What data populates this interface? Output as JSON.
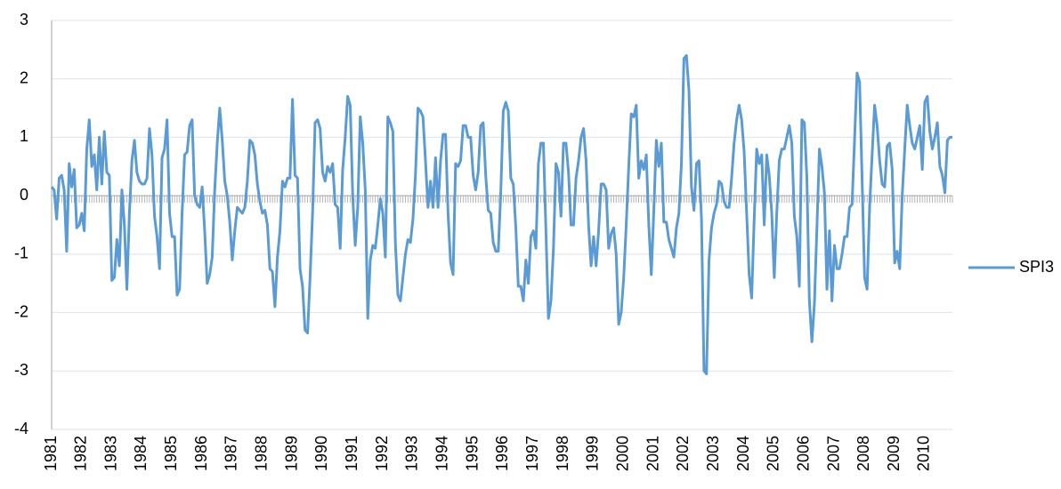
{
  "chart_data": {
    "type": "line",
    "categories": [
      "1981",
      null,
      null,
      null,
      null,
      null,
      null,
      null,
      null,
      null,
      null,
      null,
      "1982",
      null,
      null,
      null,
      null,
      null,
      null,
      null,
      null,
      null,
      null,
      null,
      "1983",
      null,
      null,
      null,
      null,
      null,
      null,
      null,
      null,
      null,
      null,
      null,
      "1984",
      null,
      null,
      null,
      null,
      null,
      null,
      null,
      null,
      null,
      null,
      null,
      "1985",
      null,
      null,
      null,
      null,
      null,
      null,
      null,
      null,
      null,
      null,
      null,
      "1986",
      null,
      null,
      null,
      null,
      null,
      null,
      null,
      null,
      null,
      null,
      null,
      "1987",
      null,
      null,
      null,
      null,
      null,
      null,
      null,
      null,
      null,
      null,
      null,
      "1988",
      null,
      null,
      null,
      null,
      null,
      null,
      null,
      null,
      null,
      null,
      null,
      "1989",
      null,
      null,
      null,
      null,
      null,
      null,
      null,
      null,
      null,
      null,
      null,
      "1990",
      null,
      null,
      null,
      null,
      null,
      null,
      null,
      null,
      null,
      null,
      null,
      "1991",
      null,
      null,
      null,
      null,
      null,
      null,
      null,
      null,
      null,
      null,
      null,
      "1992",
      null,
      null,
      null,
      null,
      null,
      null,
      null,
      null,
      null,
      null,
      null,
      "1993",
      null,
      null,
      null,
      null,
      null,
      null,
      null,
      null,
      null,
      null,
      null,
      "1994",
      null,
      null,
      null,
      null,
      null,
      null,
      null,
      null,
      null,
      null,
      null,
      "1995",
      null,
      null,
      null,
      null,
      null,
      null,
      null,
      null,
      null,
      null,
      null,
      "1996",
      null,
      null,
      null,
      null,
      null,
      null,
      null,
      null,
      null,
      null,
      null,
      "1997",
      null,
      null,
      null,
      null,
      null,
      null,
      null,
      null,
      null,
      null,
      null,
      "1998",
      null,
      null,
      null,
      null,
      null,
      null,
      null,
      null,
      null,
      null,
      null,
      "1999",
      null,
      null,
      null,
      null,
      null,
      null,
      null,
      null,
      null,
      null,
      null,
      "2000",
      null,
      null,
      null,
      null,
      null,
      null,
      null,
      null,
      null,
      null,
      null,
      "2001",
      null,
      null,
      null,
      null,
      null,
      null,
      null,
      null,
      null,
      null,
      null,
      "2002",
      null,
      null,
      null,
      null,
      null,
      null,
      null,
      null,
      null,
      null,
      null,
      "2003",
      null,
      null,
      null,
      null,
      null,
      null,
      null,
      null,
      null,
      null,
      null,
      "2004",
      null,
      null,
      null,
      null,
      null,
      null,
      null,
      null,
      null,
      null,
      null,
      "2005",
      null,
      null,
      null,
      null,
      null,
      null,
      null,
      null,
      null,
      null,
      null,
      "2006",
      null,
      null,
      null,
      null,
      null,
      null,
      null,
      null,
      null,
      null,
      null,
      "2007",
      null,
      null,
      null,
      null,
      null,
      null,
      null,
      null,
      null,
      null,
      null,
      "2008",
      null,
      null,
      null,
      null,
      null,
      null,
      null,
      null,
      null,
      null,
      null,
      "2009",
      null,
      null,
      null,
      null,
      null,
      null,
      null,
      null,
      null,
      null,
      null,
      "2010",
      null,
      null,
      null,
      null,
      null,
      null,
      null,
      null,
      null,
      null,
      null
    ],
    "series": [
      {
        "name": "SPI3",
        "color": "#5b9bd5",
        "values": [
          0.15,
          0.1,
          -0.4,
          0.3,
          0.35,
          0.1,
          -0.95,
          0.55,
          0.15,
          0.45,
          -0.55,
          -0.5,
          -0.3,
          -0.6,
          0.8,
          1.3,
          0.5,
          0.7,
          0.1,
          1.0,
          0.2,
          1.1,
          0.4,
          0.35,
          -1.45,
          -1.4,
          -0.75,
          -1.2,
          0.1,
          -0.5,
          -1.6,
          -0.3,
          0.6,
          0.95,
          0.4,
          0.25,
          0.2,
          0.2,
          0.3,
          1.15,
          0.7,
          -0.35,
          -0.7,
          -1.25,
          0.65,
          0.8,
          1.3,
          -0.3,
          -0.7,
          -0.7,
          -1.7,
          -1.6,
          -0.3,
          0.7,
          0.75,
          1.2,
          1.3,
          0.0,
          -0.15,
          -0.2,
          0.15,
          -0.6,
          -1.5,
          -1.35,
          -1.05,
          0.1,
          0.9,
          1.5,
          0.95,
          0.25,
          0.0,
          -0.45,
          -1.1,
          -0.6,
          -0.2,
          -0.25,
          -0.3,
          -0.2,
          0.25,
          0.95,
          0.9,
          0.7,
          0.2,
          -0.1,
          -0.3,
          -0.25,
          -0.5,
          -1.25,
          -1.3,
          -1.9,
          -1.05,
          -0.6,
          0.25,
          0.15,
          0.3,
          0.3,
          1.65,
          0.35,
          0.3,
          -1.25,
          -1.55,
          -2.3,
          -2.35,
          -1.4,
          -0.3,
          1.25,
          1.3,
          1.15,
          0.4,
          0.25,
          0.5,
          0.4,
          0.55,
          -0.15,
          -0.2,
          -0.9,
          0.45,
          1.0,
          1.7,
          1.55,
          0.0,
          -0.85,
          -0.2,
          1.35,
          0.9,
          0.1,
          -2.1,
          -1.1,
          -0.85,
          -0.9,
          -0.5,
          -0.05,
          -0.3,
          -1.05,
          1.35,
          1.25,
          1.1,
          -0.8,
          -1.7,
          -1.8,
          -1.4,
          -1.0,
          -0.75,
          -0.8,
          -0.4,
          0.35,
          1.5,
          1.45,
          1.35,
          0.6,
          -0.2,
          0.25,
          -0.2,
          0.65,
          -0.2,
          0.6,
          1.05,
          1.05,
          -0.3,
          -1.15,
          -1.35,
          0.55,
          0.5,
          0.6,
          1.2,
          1.2,
          1.0,
          1.0,
          0.35,
          0.1,
          0.4,
          1.2,
          1.25,
          0.35,
          -0.25,
          -0.3,
          -0.8,
          -0.95,
          -0.95,
          0.05,
          1.45,
          1.6,
          1.45,
          0.3,
          0.2,
          -0.55,
          -1.55,
          -1.55,
          -1.8,
          -1.1,
          -1.5,
          -0.7,
          -0.6,
          -0.9,
          0.55,
          0.9,
          0.9,
          -0.6,
          -2.1,
          -1.8,
          -0.9,
          0.55,
          0.4,
          -0.35,
          0.9,
          0.9,
          0.4,
          -0.5,
          -0.5,
          0.3,
          0.6,
          1.0,
          1.15,
          0.6,
          -0.5,
          -1.2,
          -0.7,
          -1.2,
          -0.6,
          0.2,
          0.2,
          0.1,
          -0.9,
          -0.65,
          -0.55,
          -1.0,
          -2.2,
          -2.0,
          -1.4,
          -0.5,
          0.5,
          1.4,
          1.35,
          1.55,
          0.3,
          0.6,
          0.45,
          0.7,
          -0.5,
          -1.35,
          -0.25,
          0.95,
          0.5,
          0.9,
          -0.45,
          -0.45,
          -0.75,
          -0.9,
          -1.05,
          -0.55,
          -0.3,
          0.55,
          2.35,
          2.4,
          1.8,
          0.15,
          -0.25,
          0.55,
          0.6,
          -0.4,
          -3.0,
          -3.05,
          -1.1,
          -0.55,
          -0.3,
          -0.15,
          0.25,
          0.2,
          -0.1,
          -0.2,
          -0.2,
          0.3,
          0.9,
          1.3,
          1.55,
          1.3,
          0.75,
          -0.3,
          -1.35,
          -1.75,
          -0.4,
          0.8,
          0.55,
          0.7,
          -0.5,
          0.7,
          0.35,
          -0.3,
          -1.4,
          -0.3,
          0.6,
          0.8,
          0.8,
          1.0,
          1.2,
          0.9,
          -0.35,
          -0.7,
          -1.55,
          1.3,
          1.25,
          0.3,
          -1.8,
          -2.5,
          -1.85,
          -0.55,
          0.8,
          0.5,
          0.05,
          -1.6,
          -0.6,
          -1.8,
          -0.85,
          -1.25,
          -1.25,
          -1.0,
          -0.7,
          -0.7,
          -0.2,
          -0.15,
          0.95,
          2.1,
          1.95,
          0.3,
          -1.4,
          -1.6,
          -0.2,
          0.7,
          1.55,
          1.2,
          0.6,
          0.2,
          0.15,
          0.85,
          0.9,
          0.45,
          -1.15,
          -0.95,
          -1.25,
          0.0,
          0.8,
          1.55,
          1.2,
          0.9,
          0.8,
          1.0,
          1.2,
          0.45,
          1.6,
          1.7,
          1.1,
          0.8,
          1.0,
          1.25,
          0.5,
          0.35,
          0.05,
          0.95,
          1.0,
          1.0
        ]
      }
    ],
    "ylim": [
      -4,
      3
    ],
    "yticks": [
      -4,
      -3,
      -2,
      -1,
      0,
      1,
      2,
      3
    ],
    "grid": true,
    "legend": "right"
  }
}
